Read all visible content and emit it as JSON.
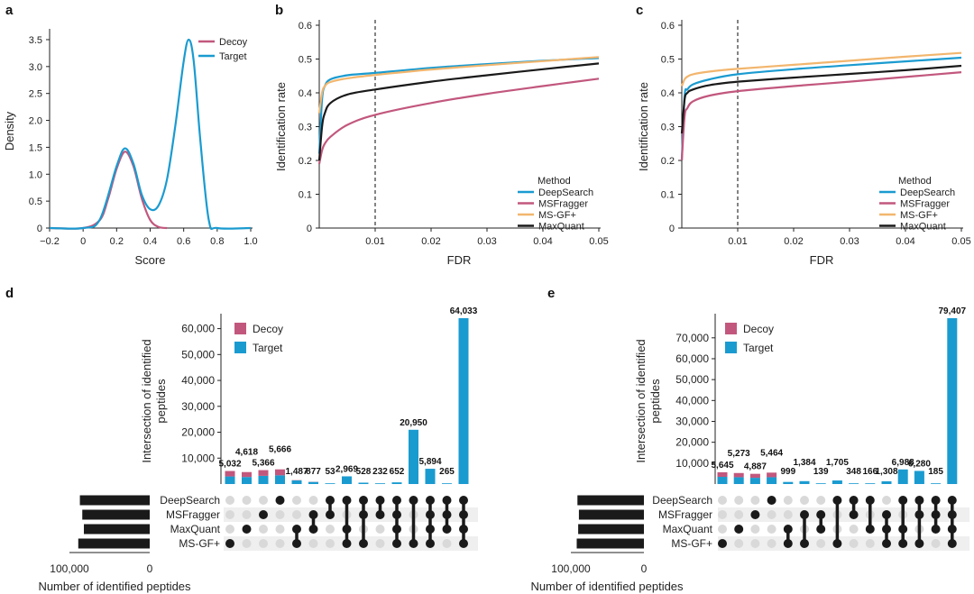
{
  "colors": {
    "decoy": "#c2577d",
    "target": "#1a9bd0",
    "deepsearch": "#1a9bd0",
    "msfragger": "#c2577d",
    "msgfplus": "#f2b66e",
    "maxquant": "#1a1a1a",
    "bar_black": "#1a1a1a",
    "dot_gray": "#d9d9d9",
    "stripe": "#efefef"
  },
  "panels": {
    "a": {
      "letter": "a",
      "xlabel": "Score",
      "ylabel": "Density",
      "xticks": [
        "−0.2",
        "0",
        "0.2",
        "0.4",
        "0.6",
        "0.8",
        "1.0"
      ],
      "yticks": [
        "0",
        "0.5",
        "1.0",
        "1.5",
        "2.0",
        "2.5",
        "3.0",
        "3.5"
      ],
      "legend": [
        "Decoy",
        "Target"
      ]
    },
    "b": {
      "letter": "b",
      "xlabel": "FDR",
      "ylabel": "Identification rate",
      "xticks": [
        "0.01",
        "0.02",
        "0.03",
        "0.04",
        "0.05"
      ],
      "yticks": [
        "0",
        "0.1",
        "0.2",
        "0.3",
        "0.4",
        "0.5",
        "0.6"
      ],
      "legend_title": "Method",
      "legend": [
        "DeepSearch",
        "MSFragger",
        "MS-GF+",
        "MaxQuant"
      ]
    },
    "c": {
      "letter": "c",
      "xlabel": "FDR",
      "ylabel": "Identification rate",
      "xticks": [
        "0.01",
        "0.02",
        "0.03",
        "0.04",
        "0.05"
      ],
      "yticks": [
        "0",
        "0.1",
        "0.2",
        "0.3",
        "0.4",
        "0.5",
        "0.6"
      ],
      "legend_title": "Method",
      "legend": [
        "DeepSearch",
        "MSFragger",
        "MS-GF+",
        "MaxQuant"
      ]
    },
    "d": {
      "letter": "d",
      "ylabel_line1": "Intersection of identified",
      "ylabel_line2": "peptides",
      "yticks": [
        "10,000",
        "20,000",
        "30,000",
        "40,000",
        "50,000",
        "60,000"
      ],
      "legend": [
        "Decoy",
        "Target"
      ],
      "set_xlabel": "Number of identified peptides",
      "set_ticks": [
        "100,000",
        "0"
      ],
      "methods": [
        "DeepSearch",
        "MSFragger",
        "MaxQuant",
        "MS-GF+"
      ]
    },
    "e": {
      "letter": "e",
      "ylabel_line1": "Intersection of identified",
      "ylabel_line2": "peptides",
      "yticks": [
        "10,000",
        "20,000",
        "30,000",
        "40,000",
        "50,000",
        "60,000",
        "70,000"
      ],
      "legend": [
        "Decoy",
        "Target"
      ],
      "set_xlabel": "Number of identified peptides",
      "set_ticks": [
        "100,000",
        "0"
      ],
      "methods": [
        "DeepSearch",
        "MSFragger",
        "MaxQuant",
        "MS-GF+"
      ]
    }
  },
  "chart_data": [
    {
      "panel": "a",
      "type": "line",
      "xlim": [
        -0.2,
        1.0
      ],
      "ylim": [
        0,
        3.6
      ],
      "series": [
        {
          "name": "Decoy",
          "x": [
            -0.2,
            0.0,
            0.1,
            0.15,
            0.2,
            0.25,
            0.3,
            0.35,
            0.4,
            0.45,
            0.5
          ],
          "y": [
            0,
            0,
            0.15,
            0.55,
            1.1,
            1.42,
            1.15,
            0.55,
            0.15,
            0.02,
            0
          ]
        },
        {
          "name": "Target",
          "x": [
            -0.2,
            0.0,
            0.1,
            0.2,
            0.25,
            0.3,
            0.35,
            0.4,
            0.45,
            0.5,
            0.55,
            0.6,
            0.63,
            0.66,
            0.7,
            0.75,
            0.8,
            1.0
          ],
          "y": [
            0,
            0,
            0.16,
            1.15,
            1.48,
            1.2,
            0.62,
            0.35,
            0.42,
            0.9,
            1.9,
            3.1,
            3.5,
            3.1,
            1.6,
            0.15,
            0,
            0
          ]
        }
      ]
    },
    {
      "panel": "b",
      "type": "line",
      "xlim": [
        0,
        0.05
      ],
      "ylim": [
        0,
        0.6
      ],
      "vline": 0.01,
      "series": [
        {
          "name": "DeepSearch",
          "x": [
            0,
            0.0005,
            0.001,
            0.002,
            0.005,
            0.01,
            0.02,
            0.03,
            0.04,
            0.05
          ],
          "y": [
            0.22,
            0.38,
            0.42,
            0.44,
            0.452,
            0.459,
            0.474,
            0.485,
            0.495,
            0.503
          ]
        },
        {
          "name": "MSFragger",
          "x": [
            0,
            0.0005,
            0.001,
            0.002,
            0.005,
            0.01,
            0.02,
            0.03,
            0.04,
            0.05
          ],
          "y": [
            0.19,
            0.23,
            0.25,
            0.27,
            0.305,
            0.335,
            0.37,
            0.397,
            0.42,
            0.442
          ]
        },
        {
          "name": "MS-GF+",
          "x": [
            0,
            0.0005,
            0.001,
            0.002,
            0.005,
            0.01,
            0.02,
            0.03,
            0.04,
            0.05
          ],
          "y": [
            0.34,
            0.4,
            0.42,
            0.432,
            0.443,
            0.453,
            0.469,
            0.482,
            0.494,
            0.506
          ]
        },
        {
          "name": "MaxQuant",
          "x": [
            0,
            0.0005,
            0.001,
            0.002,
            0.005,
            0.01,
            0.02,
            0.03,
            0.04,
            0.05
          ],
          "y": [
            0.2,
            0.3,
            0.34,
            0.37,
            0.395,
            0.41,
            0.433,
            0.452,
            0.47,
            0.487
          ]
        }
      ]
    },
    {
      "panel": "c",
      "type": "line",
      "xlim": [
        0,
        0.05
      ],
      "ylim": [
        0,
        0.6
      ],
      "vline": 0.01,
      "series": [
        {
          "name": "DeepSearch",
          "x": [
            0,
            0.0005,
            0.001,
            0.002,
            0.005,
            0.01,
            0.02,
            0.03,
            0.04,
            0.05
          ],
          "y": [
            0.2,
            0.39,
            0.41,
            0.425,
            0.44,
            0.455,
            0.47,
            0.482,
            0.493,
            0.504
          ]
        },
        {
          "name": "MSFragger",
          "x": [
            0,
            0.0005,
            0.001,
            0.002,
            0.005,
            0.01,
            0.02,
            0.03,
            0.04,
            0.05
          ],
          "y": [
            0.2,
            0.33,
            0.355,
            0.375,
            0.392,
            0.405,
            0.42,
            0.433,
            0.447,
            0.461
          ]
        },
        {
          "name": "MS-GF+",
          "x": [
            0,
            0.0005,
            0.001,
            0.002,
            0.005,
            0.01,
            0.02,
            0.03,
            0.04,
            0.05
          ],
          "y": [
            0.42,
            0.44,
            0.448,
            0.455,
            0.463,
            0.471,
            0.483,
            0.495,
            0.507,
            0.518
          ]
        },
        {
          "name": "MaxQuant",
          "x": [
            0,
            0.0005,
            0.001,
            0.002,
            0.005,
            0.01,
            0.02,
            0.03,
            0.04,
            0.05
          ],
          "y": [
            0.28,
            0.38,
            0.4,
            0.41,
            0.423,
            0.433,
            0.445,
            0.456,
            0.467,
            0.48
          ]
        }
      ]
    },
    {
      "panel": "d",
      "type": "bar",
      "ylim": [
        0,
        64033
      ],
      "set_sizes": [
        {
          "name": "DeepSearch",
          "value": 87000
        },
        {
          "name": "MSFragger",
          "value": 84000
        },
        {
          "name": "MaxQuant",
          "value": 82000
        },
        {
          "name": "MS-GF+",
          "value": 89000
        }
      ],
      "intersections": [
        {
          "label": "5,032",
          "total": 5032,
          "decoy": 2100,
          "sets": [
            3
          ]
        },
        {
          "label": "4,618",
          "total": 4618,
          "decoy": 1900,
          "sets": [
            2
          ]
        },
        {
          "label": "5,366",
          "total": 5366,
          "decoy": 2200,
          "sets": [
            1
          ]
        },
        {
          "label": "5,666",
          "total": 5666,
          "decoy": 2300,
          "sets": [
            0
          ]
        },
        {
          "label": "1,487",
          "total": 1487,
          "decoy": 100,
          "sets": [
            2,
            3
          ]
        },
        {
          "label": "877",
          "total": 877,
          "decoy": 60,
          "sets": [
            1,
            2
          ]
        },
        {
          "label": "53",
          "total": 53,
          "decoy": 0,
          "sets": [
            0,
            1
          ]
        },
        {
          "label": "2,969",
          "total": 2969,
          "decoy": 0,
          "sets": [
            0,
            2,
            3
          ]
        },
        {
          "label": "528",
          "total": 528,
          "decoy": 0,
          "sets": [
            0,
            1,
            3
          ]
        },
        {
          "label": "232",
          "total": 232,
          "decoy": 0,
          "sets": [
            0,
            1
          ]
        },
        {
          "label": "652",
          "total": 652,
          "decoy": 0,
          "sets": [
            0,
            1,
            2,
            3
          ]
        },
        {
          "label": "20,950",
          "total": 20950,
          "decoy": 0,
          "sets": [
            0,
            3
          ]
        },
        {
          "label": "5,894",
          "total": 5894,
          "decoy": 0,
          "sets": [
            0,
            1,
            2,
            3
          ]
        },
        {
          "label": "265",
          "total": 265,
          "decoy": 0,
          "sets": [
            0,
            1,
            2
          ]
        },
        {
          "label": "64,033",
          "total": 64033,
          "decoy": 0,
          "sets": [
            0,
            1,
            2,
            3
          ]
        }
      ]
    },
    {
      "panel": "e",
      "type": "bar",
      "ylim": [
        0,
        79407
      ],
      "set_sizes": [
        {
          "name": "DeepSearch",
          "value": 91000
        },
        {
          "name": "MSFragger",
          "value": 89000
        },
        {
          "name": "MaxQuant",
          "value": 90000
        },
        {
          "name": "MS-GF+",
          "value": 92000
        }
      ],
      "intersections": [
        {
          "label": "5,645",
          "total": 5645,
          "decoy": 2200,
          "sets": [
            3
          ]
        },
        {
          "label": "5,273",
          "total": 5273,
          "decoy": 2000,
          "sets": [
            2
          ]
        },
        {
          "label": "4,887",
          "total": 4887,
          "decoy": 1900,
          "sets": [
            1
          ]
        },
        {
          "label": "5,464",
          "total": 5464,
          "decoy": 2200,
          "sets": [
            0
          ]
        },
        {
          "label": "999",
          "total": 999,
          "decoy": 0,
          "sets": [
            2,
            3
          ]
        },
        {
          "label": "1,384",
          "total": 1384,
          "decoy": 0,
          "sets": [
            1,
            3
          ]
        },
        {
          "label": "139",
          "total": 139,
          "decoy": 0,
          "sets": [
            1,
            2
          ]
        },
        {
          "label": "1,705",
          "total": 1705,
          "decoy": 0,
          "sets": [
            0,
            3
          ]
        },
        {
          "label": "348",
          "total": 348,
          "decoy": 0,
          "sets": [
            0,
            1
          ]
        },
        {
          "label": "166",
          "total": 166,
          "decoy": 0,
          "sets": [
            0,
            2
          ]
        },
        {
          "label": "1,308",
          "total": 1308,
          "decoy": 0,
          "sets": [
            1,
            2,
            3
          ]
        },
        {
          "label": "6,988",
          "total": 6988,
          "decoy": 0,
          "sets": [
            0,
            2,
            3
          ]
        },
        {
          "label": "6,280",
          "total": 6280,
          "decoy": 0,
          "sets": [
            0,
            1,
            3
          ]
        },
        {
          "label": "185",
          "total": 185,
          "decoy": 0,
          "sets": [
            0,
            1,
            2
          ]
        },
        {
          "label": "79,407",
          "total": 79407,
          "decoy": 0,
          "sets": [
            0,
            1,
            2,
            3
          ]
        }
      ]
    }
  ]
}
